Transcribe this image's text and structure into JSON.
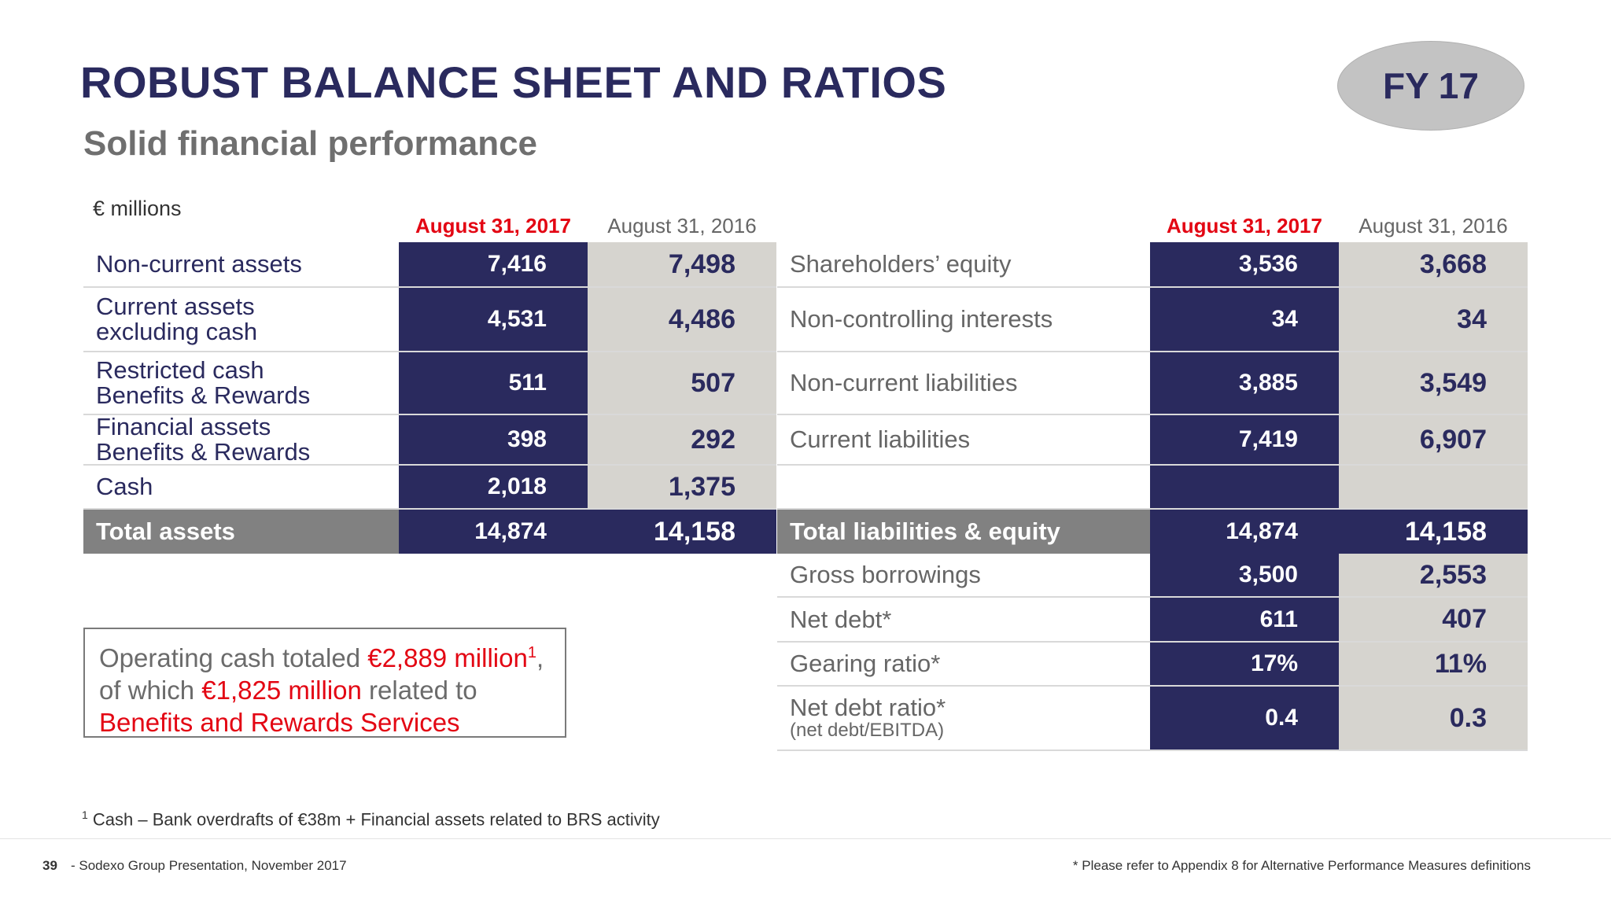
{
  "header": {
    "title": "ROBUST BALANCE SHEET AND RATIOS",
    "subtitle": "Solid financial performance",
    "badge": "FY 17"
  },
  "unit": "€ millions",
  "columns": {
    "current": "August 31, 2017",
    "previous": "August 31, 2016"
  },
  "assets": [
    {
      "lines": [
        "Non-current assets"
      ],
      "current": "7,416",
      "previous": "7,498"
    },
    {
      "lines": [
        "Current assets",
        "excluding cash"
      ],
      "current": "4,531",
      "previous": "4,486"
    },
    {
      "lines": [
        "Restricted cash",
        "Benefits & Rewards"
      ],
      "current": "511",
      "previous": "507"
    },
    {
      "lines": [
        "Financial assets",
        "Benefits & Rewards"
      ],
      "current": "398",
      "previous": "292"
    },
    {
      "lines": [
        "Cash"
      ],
      "current": "2,018",
      "previous": "1,375"
    }
  ],
  "assets_total": {
    "label": "Total assets",
    "current": "14,874",
    "previous": "14,158"
  },
  "liabilities": [
    {
      "label": "Shareholders’ equity",
      "current": "3,536",
      "previous": "3,668"
    },
    {
      "label": "Non-controlling interests",
      "current": "34",
      "previous": "34"
    },
    {
      "label": "Non-current liabilities",
      "current": "3,885",
      "previous": "3,549"
    },
    {
      "label": "Current liabilities",
      "current": "7,419",
      "previous": "6,907"
    },
    {
      "label": "",
      "current": "",
      "previous": ""
    }
  ],
  "liabilities_total": {
    "label": "Total liabilities & equity",
    "current": "14,874",
    "previous": "14,158"
  },
  "ratios": [
    {
      "label": "Gross borrowings",
      "note": "",
      "current": "3,500",
      "previous": "2,553"
    },
    {
      "label": "Net debt*",
      "note": "",
      "current": "611",
      "previous": "407"
    },
    {
      "label": "Gearing ratio*",
      "note": "",
      "current": "17%",
      "previous": "11%"
    },
    {
      "label": "Net debt ratio*",
      "note": "(net debt/EBITDA)",
      "current": "0.4",
      "previous": "0.3"
    }
  ],
  "callout": {
    "part1": "Operating cash totaled ",
    "amount1": "€2,889 million",
    "sup1": "1",
    "part2": ",",
    "part3": "of which ",
    "amount2": "€1,825 million",
    "part4": " related to",
    "part5": "Benefits and Rewards Services"
  },
  "footnote": {
    "marker": "1",
    "text": " Cash – Bank overdrafts of €38m + Financial assets related to BRS activity"
  },
  "footer": {
    "page_number": "39",
    "presentation": "- Sodexo Group Presentation, November 2017",
    "note": "* Please refer to Appendix 8 for Alternative Performance Measures definitions"
  },
  "colors": {
    "navy": "#2a2a5e",
    "red": "#e30613",
    "gray_band": "#d6d4cf",
    "total_label": "#818181"
  }
}
